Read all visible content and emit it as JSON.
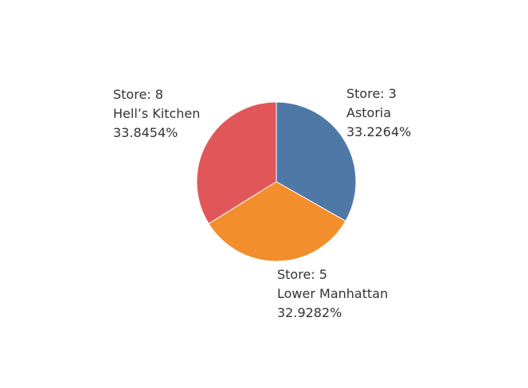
{
  "chart_data": {
    "type": "pie",
    "title": "",
    "slices": [
      {
        "store": "Store: 3",
        "location": "Astoria",
        "percent_label": "33.2264%",
        "value": 33.2264,
        "color": "#4e79a7"
      },
      {
        "store": "Store: 5",
        "location": "Lower Manhattan",
        "percent_label": "32.9282%",
        "value": 32.9282,
        "color": "#f28e2b"
      },
      {
        "store": "Store: 8",
        "location": "Hell’s Kitchen",
        "percent_label": "33.8454%",
        "value": 33.8454,
        "color": "#e15759"
      }
    ],
    "start_angle_deg": 0,
    "direction": "clockwise",
    "legend": "none"
  }
}
